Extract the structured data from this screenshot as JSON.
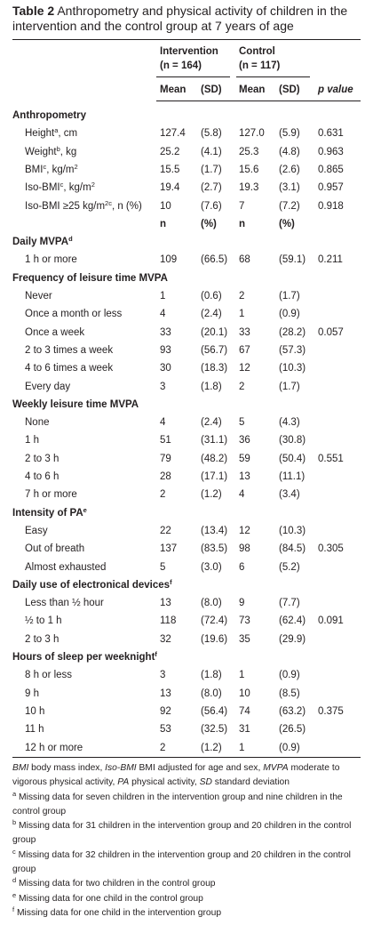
{
  "caption": {
    "label": "Table 2",
    "text": "Anthropometry and physical activity of children in the intervention and the control group at 7 years of age"
  },
  "header": {
    "groups": [
      {
        "name": "Intervention",
        "n": "(n = 164)"
      },
      {
        "name": "Control",
        "n": "(n = 117)"
      }
    ],
    "columns": [
      "Mean",
      "(SD)",
      "Mean",
      "(SD)",
      "p value"
    ]
  },
  "sections": [
    {
      "title": [
        "Anthropometry"
      ],
      "rows": [
        {
          "label": [
            "Height",
            {
              "sup": "a"
            },
            ", cm"
          ],
          "cells": [
            "127.4",
            "(5.8)",
            "127.0",
            "(5.9)",
            "0.631"
          ]
        },
        {
          "label": [
            "Weight",
            {
              "sup": "b"
            },
            ", kg"
          ],
          "cells": [
            "25.2",
            "(4.1)",
            "25.3",
            "(4.8)",
            "0.963"
          ]
        },
        {
          "label": [
            "BMI",
            {
              "sup": "c"
            },
            ", kg/m",
            {
              "sup": "2"
            }
          ],
          "cells": [
            "15.5",
            "(1.7)",
            "15.6",
            "(2.6)",
            "0.865"
          ]
        },
        {
          "label": [
            "Iso-BMI",
            {
              "sup": "c"
            },
            ", kg/m",
            {
              "sup": "2"
            }
          ],
          "cells": [
            "19.4",
            "(2.7)",
            "19.3",
            "(3.1)",
            "0.957"
          ]
        },
        {
          "label": [
            "Iso-BMI ≥25 kg/m",
            {
              "sup": "2c"
            },
            ", n (%)"
          ],
          "cells": [
            "10",
            "(7.6)",
            "7",
            "(7.2)",
            "0.918"
          ]
        }
      ],
      "subheader": [
        "n",
        "(%)",
        "n",
        "(%)"
      ]
    },
    {
      "title": [
        "Daily MVPA",
        {
          "sup": "d"
        }
      ],
      "rows": [
        {
          "label": [
            "1 h or more"
          ],
          "cells": [
            "109",
            "(66.5)",
            "68",
            "(59.1)",
            "0.211"
          ]
        }
      ]
    },
    {
      "title": [
        "Frequency of leisure time MVPA"
      ],
      "rows": [
        {
          "label": [
            "Never"
          ],
          "cells": [
            "1",
            "(0.6)",
            "2",
            "(1.7)",
            null
          ]
        },
        {
          "label": [
            "Once a month or less"
          ],
          "cells": [
            "4",
            "(2.4)",
            "1",
            "(0.9)",
            null
          ]
        },
        {
          "label": [
            "Once a week"
          ],
          "cells": [
            "33",
            "(20.1)",
            "33",
            "(28.2)",
            "0.057"
          ]
        },
        {
          "label": [
            "2 to 3 times a week"
          ],
          "cells": [
            "93",
            "(56.7)",
            "67",
            "(57.3)",
            null
          ]
        },
        {
          "label": [
            "4 to 6 times a week"
          ],
          "cells": [
            "30",
            "(18.3)",
            "12",
            "(10.3)",
            null
          ]
        },
        {
          "label": [
            "Every day"
          ],
          "cells": [
            "3",
            "(1.8)",
            "2",
            "(1.7)",
            null
          ]
        }
      ]
    },
    {
      "title": [
        "Weekly leisure time MVPA"
      ],
      "rows": [
        {
          "label": [
            "None"
          ],
          "cells": [
            "4",
            "(2.4)",
            "5",
            "(4.3)",
            null
          ]
        },
        {
          "label": [
            "1 h"
          ],
          "cells": [
            "51",
            "(31.1)",
            "36",
            "(30.8)",
            null
          ]
        },
        {
          "label": [
            "2 to 3 h"
          ],
          "cells": [
            "79",
            "(48.2)",
            "59",
            "(50.4)",
            "0.551"
          ]
        },
        {
          "label": [
            "4 to 6 h"
          ],
          "cells": [
            "28",
            "(17.1)",
            "13",
            "(11.1)",
            null
          ]
        },
        {
          "label": [
            "7 h or more"
          ],
          "cells": [
            "2",
            "(1.2)",
            "4",
            "(3.4)",
            null
          ]
        }
      ]
    },
    {
      "title": [
        "Intensity of PA",
        {
          "sup": "e"
        }
      ],
      "rows": [
        {
          "label": [
            "Easy"
          ],
          "cells": [
            "22",
            "(13.4)",
            "12",
            "(10.3)",
            null
          ]
        },
        {
          "label": [
            "Out of breath"
          ],
          "cells": [
            "137",
            "(83.5)",
            "98",
            "(84.5)",
            "0.305"
          ]
        },
        {
          "label": [
            "Almost exhausted"
          ],
          "cells": [
            "5",
            "(3.0)",
            "6",
            "(5.2)",
            null
          ]
        }
      ]
    },
    {
      "title": [
        "Daily use of electronical devices",
        {
          "sup": "f"
        }
      ],
      "rows": [
        {
          "label": [
            "Less than ½ hour"
          ],
          "cells": [
            "13",
            "(8.0)",
            "9",
            "(7.7)",
            null
          ]
        },
        {
          "label": [
            "½ to 1 h"
          ],
          "cells": [
            "118",
            "(72.4)",
            "73",
            "(62.4)",
            "0.091"
          ]
        },
        {
          "label": [
            "2 to 3 h"
          ],
          "cells": [
            "32",
            "(19.6)",
            "35",
            "(29.9)",
            null
          ]
        }
      ]
    },
    {
      "title": [
        "Hours of sleep per weeknight",
        {
          "sup": "f"
        }
      ],
      "rows": [
        {
          "label": [
            "8 h or less"
          ],
          "cells": [
            "3",
            "(1.8)",
            "1",
            "(0.9)",
            null
          ]
        },
        {
          "label": [
            "9 h"
          ],
          "cells": [
            "13",
            "(8.0)",
            "10",
            "(8.5)",
            null
          ]
        },
        {
          "label": [
            "10 h"
          ],
          "cells": [
            "92",
            "(56.4)",
            "74",
            "(63.2)",
            "0.375"
          ]
        },
        {
          "label": [
            "11 h"
          ],
          "cells": [
            "53",
            "(32.5)",
            "31",
            "(26.5)",
            null
          ]
        },
        {
          "label": [
            "12 h or more"
          ],
          "cells": [
            "2",
            "(1.2)",
            "1",
            "(0.9)",
            null
          ]
        }
      ]
    }
  ],
  "footnotes": [
    [
      {
        "em": "BMI"
      },
      " body mass index, ",
      {
        "em": "Iso-BMI"
      },
      " BMI adjusted for age and sex, ",
      {
        "em": "MVPA"
      },
      " moderate to vigorous physical activity, ",
      {
        "em": "PA"
      },
      " physical activity, ",
      {
        "em": "SD"
      },
      " standard deviation"
    ],
    [
      {
        "sup": "a"
      },
      " Missing data for seven children in the intervention group and nine children in the control group"
    ],
    [
      {
        "sup": "b"
      },
      " Missing data for 31 children in the intervention group and 20 children in the control group"
    ],
    [
      {
        "sup": "c"
      },
      " Missing data for 32 children in the intervention group and 20 children in the control group"
    ],
    [
      {
        "sup": "d"
      },
      " Missing data for two children in the control group"
    ],
    [
      {
        "sup": "e"
      },
      " Missing data for one child in the control group"
    ],
    [
      {
        "sup": "f"
      },
      " Missing data for one child in the intervention group"
    ]
  ]
}
